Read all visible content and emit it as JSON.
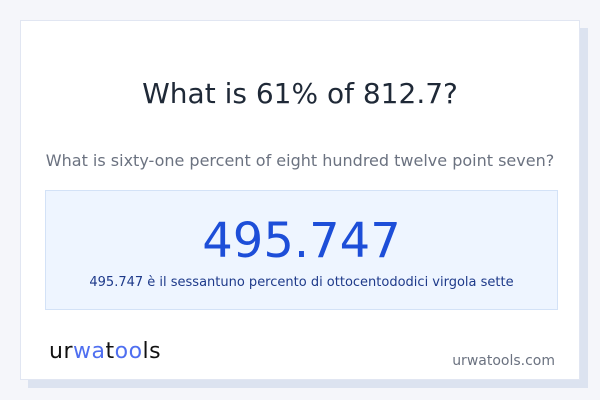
{
  "title": "What is 61% of 812.7?",
  "subtitle": "What is sixty-one percent of eight hundred twelve point seven?",
  "result": {
    "value": "495.747",
    "description": "495.747 è il sessantuno percento di ottocentododici virgola sette"
  },
  "footer": {
    "logo": "urwatools",
    "site": "urwatools.com"
  },
  "colors": {
    "accent": "#1d4ed8",
    "logo_accent": "#4f6ff0"
  }
}
